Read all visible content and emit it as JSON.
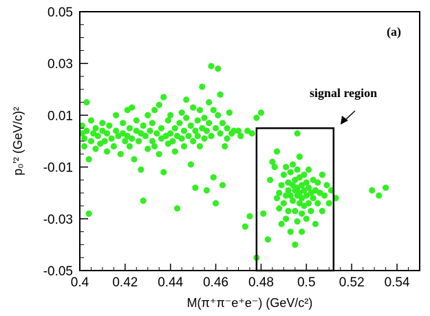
{
  "chart_data": {
    "type": "scatter",
    "panel_label": "(a)",
    "xlabel": "M(π⁺π⁻e⁺e⁻)  (GeV/c²)",
    "ylabel": "p₀′²  (GeV/c)²",
    "xlim": [
      0.4,
      0.55
    ],
    "ylim": [
      -0.05,
      0.05
    ],
    "x_ticks": [
      "0.4",
      "0.42",
      "0.44",
      "0.46",
      "0.48",
      "0.5",
      "0.52",
      "0.54"
    ],
    "y_ticks": [
      "0.05",
      "0.03",
      "0.01",
      "-0.01",
      "-0.03",
      "-0.05"
    ],
    "grid": false,
    "point_color": "#33ee22",
    "signal_region": {
      "label": "signal region",
      "x": [
        0.478,
        0.512
      ],
      "y": [
        -0.05,
        0.005
      ]
    },
    "series": [
      {
        "points": [
          [
            0.401,
            0.006
          ],
          [
            0.401,
            0.003
          ],
          [
            0.402,
            0.001
          ],
          [
            0.402,
            -0.002
          ],
          [
            0.403,
            0.004
          ],
          [
            0.403,
            0.015
          ],
          [
            0.404,
            -0.007
          ],
          [
            0.404,
            -0.028
          ],
          [
            0.405,
            0.008
          ],
          [
            0.405,
            0.0
          ],
          [
            0.406,
            0.003
          ],
          [
            0.407,
            -0.003
          ],
          [
            0.407,
            0.005
          ],
          [
            0.408,
            0.002
          ],
          [
            0.409,
            -0.001
          ],
          [
            0.41,
            0.004
          ],
          [
            0.41,
            0.007
          ],
          [
            0.411,
            0.0
          ],
          [
            0.412,
            -0.004
          ],
          [
            0.412,
            0.003
          ],
          [
            0.413,
            0.006
          ],
          [
            0.414,
            0.001
          ],
          [
            0.415,
            -0.002
          ],
          [
            0.416,
            0.004
          ],
          [
            0.416,
            0.01
          ],
          [
            0.417,
            0.002
          ],
          [
            0.418,
            -0.005
          ],
          [
            0.419,
            0.003
          ],
          [
            0.419,
            0.007
          ],
          [
            0.42,
            0.0
          ],
          [
            0.421,
            0.002
          ],
          [
            0.421,
            0.012
          ],
          [
            0.422,
            -0.002
          ],
          [
            0.422,
            0.005
          ],
          [
            0.423,
            0.013
          ],
          [
            0.423,
            0.001
          ],
          [
            0.424,
            -0.007
          ],
          [
            0.425,
            0.004
          ],
          [
            0.425,
            0.008
          ],
          [
            0.426,
            0.0
          ],
          [
            0.427,
            0.003
          ],
          [
            0.427,
            -0.011
          ],
          [
            0.428,
            0.006
          ],
          [
            0.428,
            -0.023
          ],
          [
            0.429,
            0.002
          ],
          [
            0.43,
            0.01
          ],
          [
            0.43,
            -0.003
          ],
          [
            0.431,
            0.004
          ],
          [
            0.432,
            0.0
          ],
          [
            0.432,
            0.007
          ],
          [
            0.433,
            0.012
          ],
          [
            0.433,
            -0.002
          ],
          [
            0.434,
            0.003
          ],
          [
            0.435,
            0.014
          ],
          [
            0.435,
            -0.005
          ],
          [
            0.436,
            0.001
          ],
          [
            0.436,
            0.005
          ],
          [
            0.437,
            0.017
          ],
          [
            0.437,
            -0.012
          ],
          [
            0.438,
            0.002
          ],
          [
            0.439,
            0.008
          ],
          [
            0.439,
            -0.001
          ],
          [
            0.44,
            0.003
          ],
          [
            0.44,
            0.01
          ],
          [
            0.441,
            0.0
          ],
          [
            0.442,
            0.005
          ],
          [
            0.442,
            -0.004
          ],
          [
            0.443,
            -0.026
          ],
          [
            0.443,
            0.002
          ],
          [
            0.444,
            0.007
          ],
          [
            0.445,
            0.001
          ],
          [
            0.445,
            0.011
          ],
          [
            0.446,
            -0.002
          ],
          [
            0.446,
            0.004
          ],
          [
            0.447,
            0.009
          ],
          [
            0.447,
            0.016
          ],
          [
            0.448,
            0.002
          ],
          [
            0.449,
            -0.009
          ],
          [
            0.449,
            0.006
          ],
          [
            0.45,
            0.013
          ],
          [
            0.45,
            0.0
          ],
          [
            0.451,
            0.004
          ],
          [
            0.451,
            -0.018
          ],
          [
            0.452,
            0.008
          ],
          [
            0.452,
            0.002
          ],
          [
            0.453,
            0.012
          ],
          [
            0.453,
            -0.002
          ],
          [
            0.454,
            0.005
          ],
          [
            0.454,
            0.021
          ],
          [
            0.455,
            0.001
          ],
          [
            0.455,
            0.009
          ],
          [
            0.456,
            -0.019
          ],
          [
            0.456,
            0.004
          ],
          [
            0.457,
            0.007
          ],
          [
            0.457,
            0.015
          ],
          [
            0.458,
            0.029
          ],
          [
            0.458,
            0.002
          ],
          [
            0.459,
            0.012
          ],
          [
            0.459,
            -0.014
          ],
          [
            0.46,
            0.005
          ],
          [
            0.46,
            -0.024
          ],
          [
            0.461,
            0.01
          ],
          [
            0.461,
            0.028
          ],
          [
            0.462,
            0.003
          ],
          [
            0.462,
            0.018
          ],
          [
            0.463,
            -0.017
          ],
          [
            0.463,
            0.007
          ],
          [
            0.464,
            -0.002
          ],
          [
            0.465,
            0.005
          ],
          [
            0.465,
            0.001
          ],
          [
            0.466,
            0.011
          ],
          [
            0.467,
            0.003
          ],
          [
            0.468,
            0.004
          ],
          [
            0.47,
            0.004
          ],
          [
            0.471,
            0.002
          ],
          [
            0.473,
            -0.033
          ],
          [
            0.474,
            0.004
          ],
          [
            0.475,
            -0.029
          ],
          [
            0.476,
            0.003
          ],
          [
            0.478,
            0.009
          ],
          [
            0.478,
            -0.045
          ],
          [
            0.48,
            0.011
          ],
          [
            0.481,
            -0.028
          ],
          [
            0.483,
            -0.038
          ],
          [
            0.484,
            -0.015
          ],
          [
            0.485,
            -0.008
          ],
          [
            0.486,
            -0.01
          ],
          [
            0.487,
            -0.004
          ],
          [
            0.487,
            -0.022
          ],
          [
            0.488,
            -0.02
          ],
          [
            0.488,
            -0.026
          ],
          [
            0.489,
            -0.032
          ],
          [
            0.489,
            -0.017
          ],
          [
            0.49,
            -0.013
          ],
          [
            0.49,
            -0.024
          ],
          [
            0.491,
            -0.01
          ],
          [
            0.491,
            -0.021
          ],
          [
            0.491,
            -0.03
          ],
          [
            0.492,
            -0.016
          ],
          [
            0.492,
            -0.019
          ],
          [
            0.492,
            -0.027
          ],
          [
            0.493,
            -0.012
          ],
          [
            0.493,
            -0.021
          ],
          [
            0.493,
            -0.035
          ],
          [
            0.494,
            -0.017
          ],
          [
            0.494,
            -0.023
          ],
          [
            0.494,
            -0.009
          ],
          [
            0.495,
            -0.019
          ],
          [
            0.495,
            -0.027
          ],
          [
            0.495,
            -0.015
          ],
          [
            0.495,
            -0.04
          ],
          [
            0.496,
            -0.021
          ],
          [
            0.496,
            -0.018
          ],
          [
            0.496,
            -0.011
          ],
          [
            0.496,
            -0.031
          ],
          [
            0.496,
            0.003
          ],
          [
            0.497,
            -0.02
          ],
          [
            0.497,
            -0.024
          ],
          [
            0.497,
            -0.014
          ],
          [
            0.497,
            -0.006
          ],
          [
            0.498,
            -0.017
          ],
          [
            0.498,
            -0.022
          ],
          [
            0.498,
            -0.028
          ],
          [
            0.498,
            -0.035
          ],
          [
            0.499,
            -0.019
          ],
          [
            0.499,
            -0.013
          ],
          [
            0.499,
            -0.025
          ],
          [
            0.5,
            -0.021
          ],
          [
            0.5,
            -0.016
          ],
          [
            0.5,
            -0.03
          ],
          [
            0.501,
            -0.018
          ],
          [
            0.501,
            -0.024
          ],
          [
            0.501,
            -0.011
          ],
          [
            0.502,
            -0.02
          ],
          [
            0.502,
            -0.027
          ],
          [
            0.503,
            -0.015
          ],
          [
            0.503,
            -0.022
          ],
          [
            0.504,
            -0.019
          ],
          [
            0.504,
            -0.032
          ],
          [
            0.505,
            -0.016
          ],
          [
            0.505,
            -0.024
          ],
          [
            0.506,
            -0.02
          ],
          [
            0.507,
            -0.013
          ],
          [
            0.507,
            -0.027
          ],
          [
            0.508,
            -0.021
          ],
          [
            0.509,
            -0.017
          ],
          [
            0.51,
            -0.024
          ],
          [
            0.511,
            -0.019
          ],
          [
            0.513,
            -0.022
          ],
          [
            0.529,
            -0.019
          ],
          [
            0.532,
            -0.021
          ],
          [
            0.535,
            -0.018
          ]
        ]
      }
    ]
  }
}
